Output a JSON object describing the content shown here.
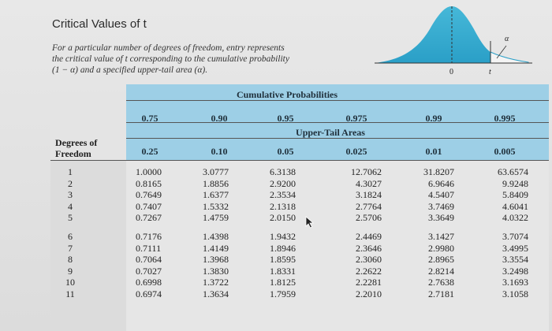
{
  "title": "Critical Values of t",
  "description": [
    "For a particular number of degrees of freedom, entry represents",
    "the critical value of t corresponding to the cumulative probability",
    "(1 − α) and a specified upper-tail area (α)."
  ],
  "curve_labels": {
    "zero": "0",
    "t": "t",
    "alpha": "α"
  },
  "headers": {
    "cumulative": "Cumulative Probabilities",
    "upper_tail": "Upper-Tail Areas",
    "degrees": "Degrees of Freedom",
    "cum_values": [
      "0.75",
      "0.90",
      "0.95",
      "0.975",
      "0.99",
      "0.995"
    ],
    "tail_values": [
      "0.25",
      "0.10",
      "0.05",
      "0.025",
      "0.01",
      "0.005"
    ]
  },
  "degrees_of_freedom": [
    "1",
    "2",
    "3",
    "4",
    "5",
    "6",
    "7",
    "8",
    "9",
    "10",
    "11"
  ],
  "columns": [
    [
      "1.0000",
      "0.8165",
      "0.7649",
      "0.7407",
      "0.7267",
      "0.7176",
      "0.7111",
      "0.7064",
      "0.7027",
      "0.6998",
      "0.6974"
    ],
    [
      "3.0777",
      "1.8856",
      "1.6377",
      "1.5332",
      "1.4759",
      "1.4398",
      "1.4149",
      "1.3968",
      "1.3830",
      "1.3722",
      "1.3634"
    ],
    [
      "6.3138",
      "2.9200",
      "2.3534",
      "2.1318",
      "2.0150",
      "1.9432",
      "1.8946",
      "1.8595",
      "1.8331",
      "1.8125",
      "1.7959"
    ],
    [
      "12.7062",
      "4.3027",
      "3.1824",
      "2.7764",
      "2.5706",
      "2.4469",
      "2.3646",
      "2.3060",
      "2.2622",
      "2.2281",
      "2.2010"
    ],
    [
      "31.8207",
      "6.9646",
      "4.5407",
      "3.7469",
      "3.3649",
      "3.1427",
      "2.9980",
      "2.8965",
      "2.8214",
      "2.7638",
      "2.7181"
    ],
    [
      "63.6574",
      "9.9248",
      "5.8409",
      "4.6041",
      "4.0322",
      "3.7074",
      "3.4995",
      "3.3554",
      "3.2498",
      "3.1693",
      "3.1058"
    ]
  ]
}
